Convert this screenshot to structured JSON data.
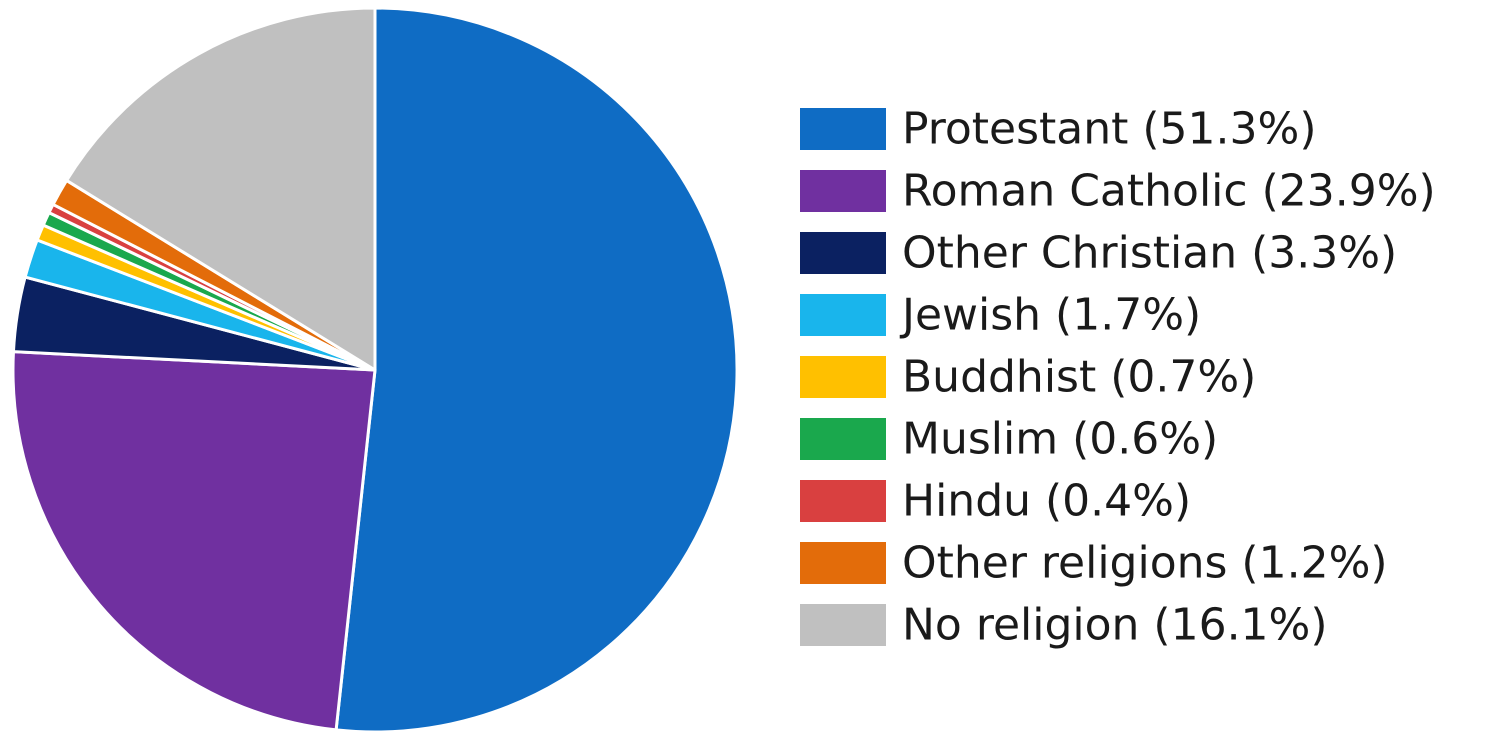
{
  "chart_data": {
    "type": "pie",
    "title": "",
    "start_angle_deg": 0,
    "direction": "clockwise",
    "legend_position": "right",
    "slices": [
      {
        "label": "Protestant (51.3%)",
        "value": 51.3,
        "color": "#0f6cc4"
      },
      {
        "label": "Roman Catholic (23.9%)",
        "value": 23.9,
        "color": "#7030a0"
      },
      {
        "label": "Other Christian (3.3%)",
        "value": 3.3,
        "color": "#0b2161"
      },
      {
        "label": "Jewish (1.7%)",
        "value": 1.7,
        "color": "#19b5ec"
      },
      {
        "label": "Buddhist (0.7%)",
        "value": 0.7,
        "color": "#ffc000"
      },
      {
        "label": "Muslim (0.6%)",
        "value": 0.6,
        "color": "#1aa84d"
      },
      {
        "label": "Hindu (0.4%)",
        "value": 0.4,
        "color": "#d94040"
      },
      {
        "label": "Other religions (1.2%)",
        "value": 1.2,
        "color": "#e36c0a"
      },
      {
        "label": "No religion (16.1%)",
        "value": 16.1,
        "color": "#c0c0c0"
      }
    ]
  }
}
